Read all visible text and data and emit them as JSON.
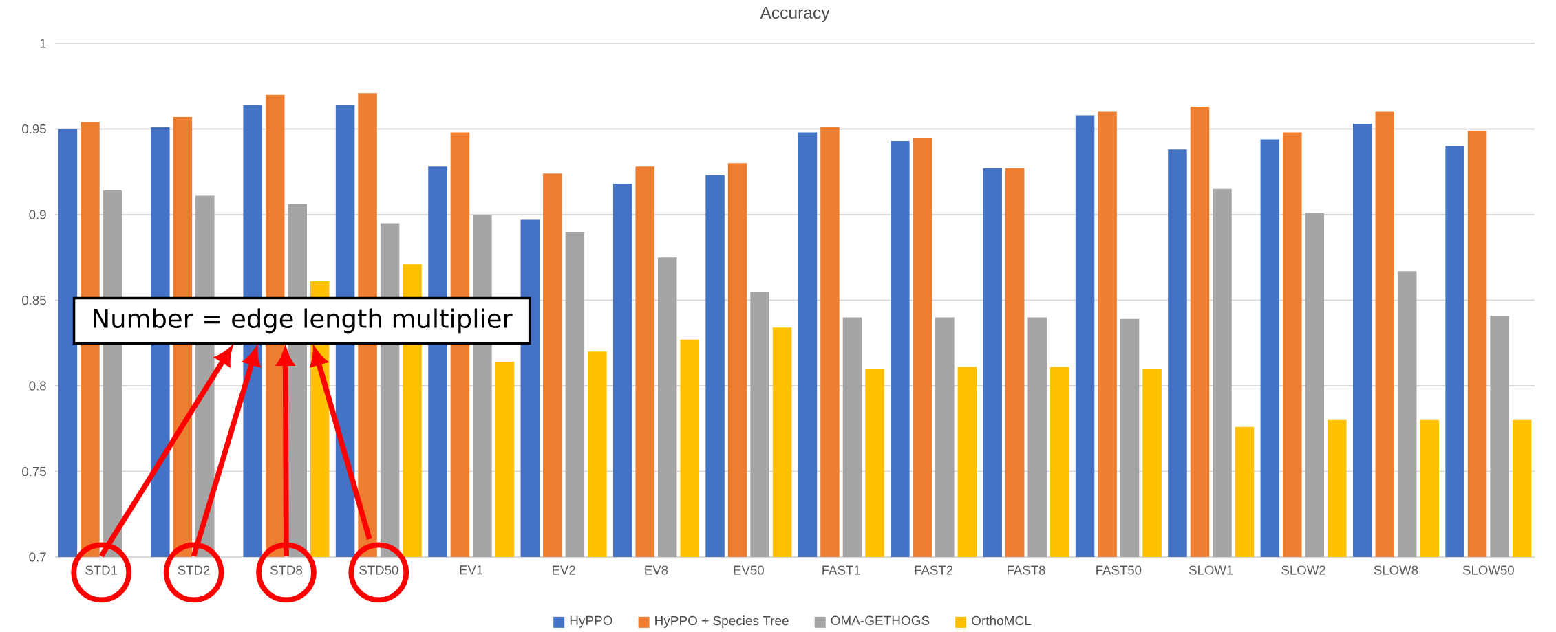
{
  "chart_data": {
    "type": "bar",
    "title": "Accuracy",
    "categories": [
      "STD1",
      "STD2",
      "STD8",
      "STD50",
      "EV1",
      "EV2",
      "EV8",
      "EV50",
      "FAST1",
      "FAST2",
      "FAST8",
      "FAST50",
      "SLOW1",
      "SLOW2",
      "SLOW8",
      "SLOW50"
    ],
    "series": [
      {
        "name": "HyPPO",
        "color": "#4472c4",
        "values": [
          0.95,
          0.951,
          0.964,
          0.964,
          0.928,
          0.897,
          0.918,
          0.923,
          0.948,
          0.943,
          0.927,
          0.958,
          0.938,
          0.944,
          0.953,
          0.94
        ]
      },
      {
        "name": "HyPPO + Species Tree",
        "color": "#ed7d31",
        "values": [
          0.954,
          0.957,
          0.97,
          0.971,
          0.948,
          0.924,
          0.928,
          0.93,
          0.951,
          0.945,
          0.927,
          0.96,
          0.963,
          0.948,
          0.96,
          0.949
        ]
      },
      {
        "name": "OMA-GETHOGS",
        "color": "#a5a5a5",
        "values": [
          0.914,
          0.911,
          0.906,
          0.895,
          0.9,
          0.89,
          0.875,
          0.855,
          0.84,
          0.84,
          0.84,
          0.839,
          0.915,
          0.901,
          0.867,
          0.841
        ]
      },
      {
        "name": "OrthoMCL",
        "color": "#ffc000",
        "values": [
          null,
          null,
          0.861,
          0.871,
          0.814,
          0.82,
          0.827,
          0.834,
          0.81,
          0.811,
          0.811,
          0.81,
          0.776,
          0.78,
          0.78,
          0.78
        ]
      }
    ],
    "ylim": [
      0.7,
      1.0
    ],
    "yticks": [
      0.7,
      0.75,
      0.8,
      0.85,
      0.9,
      0.95,
      1
    ],
    "grid": "y",
    "legend": "bottom",
    "annotations": [
      "Number = edge length multiplier"
    ]
  }
}
